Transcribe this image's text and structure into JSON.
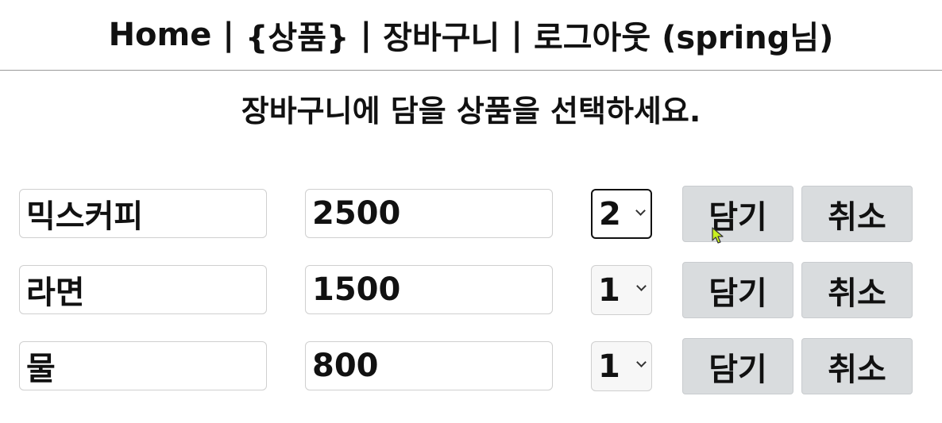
{
  "nav": {
    "home": "Home",
    "products": "{상품}",
    "cart": "장바구니",
    "logout": "로그아웃 (spring님)",
    "separator": "|"
  },
  "heading": "장바구니에 담을 상품을 선택하세요.",
  "items": [
    {
      "name": "믹스커피",
      "price": "2500",
      "qty": "2",
      "add_label": "담기",
      "cancel_label": "취소"
    },
    {
      "name": "라면",
      "price": "1500",
      "qty": "1",
      "add_label": "담기",
      "cancel_label": "취소"
    },
    {
      "name": "물",
      "price": "800",
      "qty": "1",
      "add_label": "담기",
      "cancel_label": "취소"
    }
  ],
  "colors": {
    "button_bg": "#d9dcde",
    "cursor": "#c8f020"
  }
}
